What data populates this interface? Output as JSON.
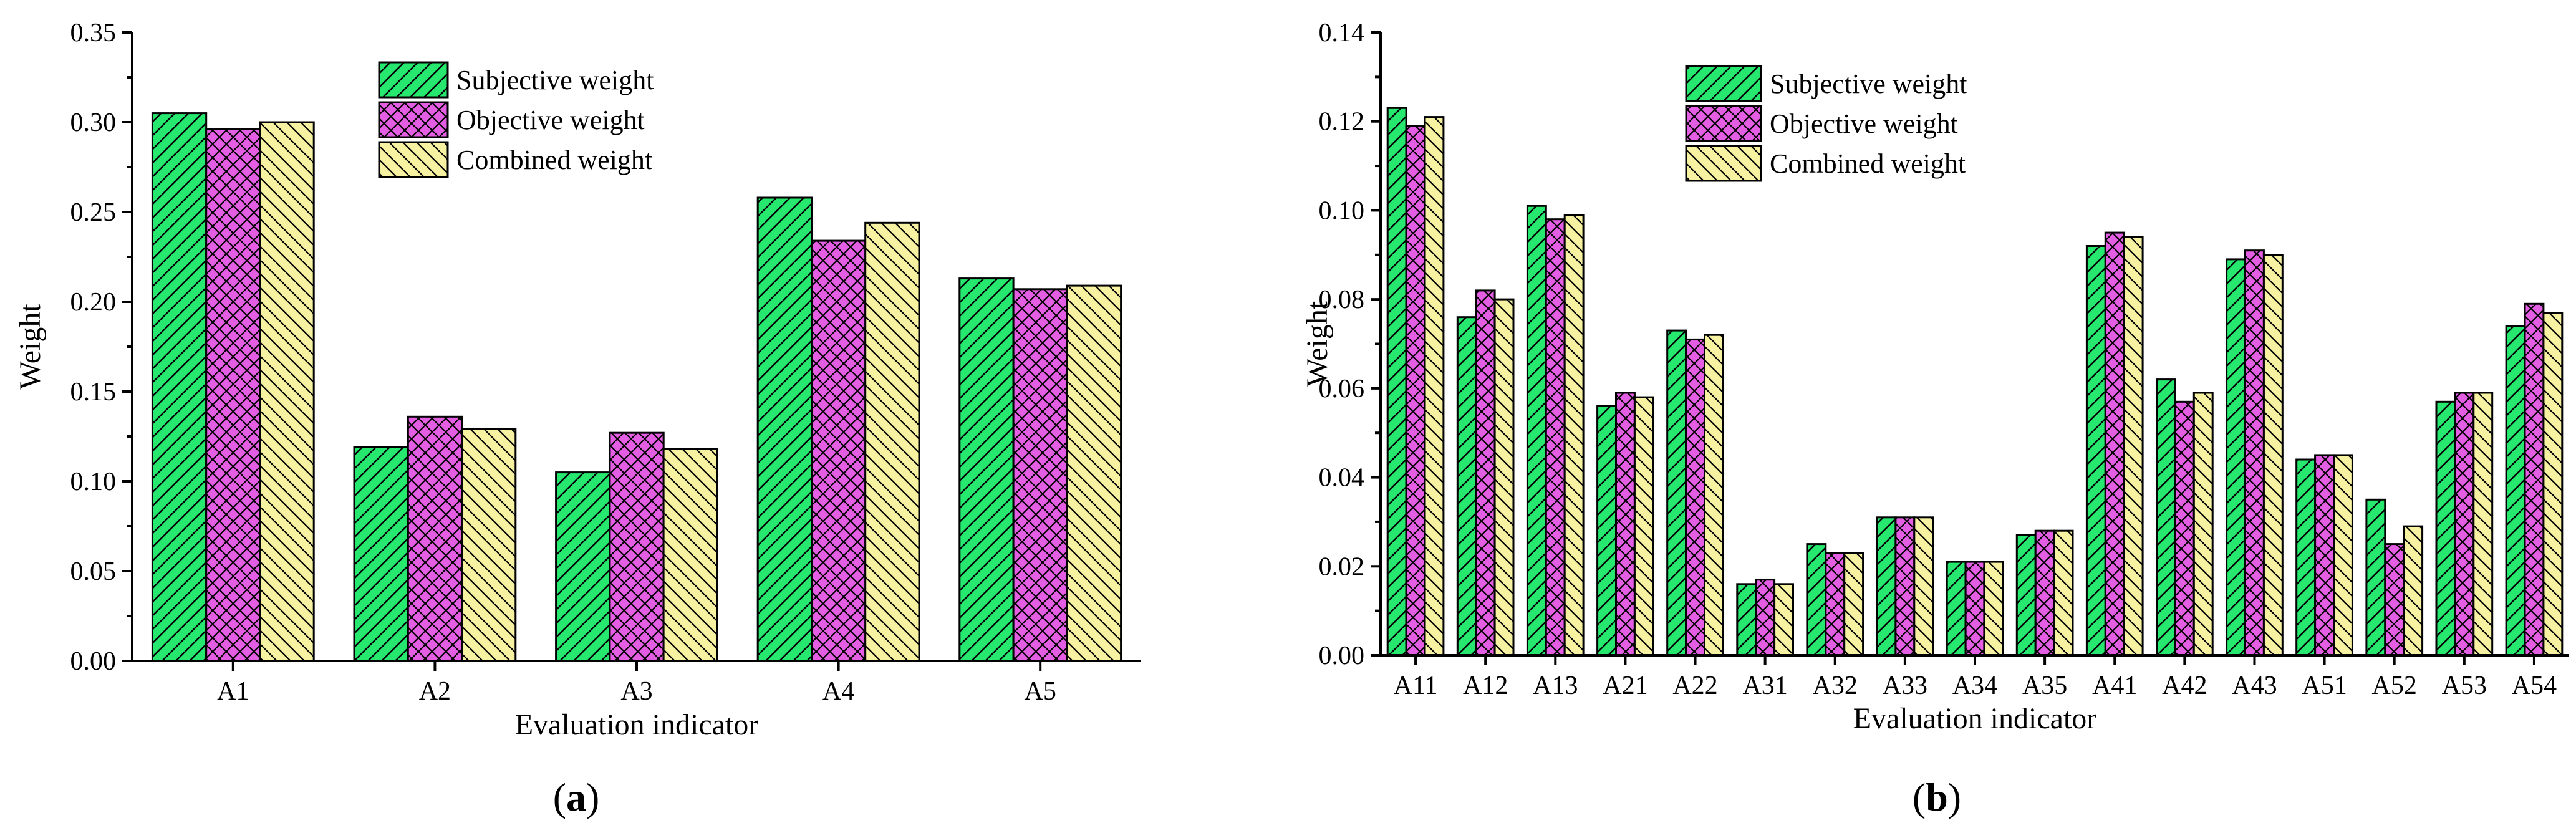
{
  "chart_data": [
    {
      "type": "bar",
      "panel_label": "(a)",
      "panel_letter": "a",
      "xlabel": "Evaluation indicator",
      "ylabel": "Weight",
      "ylim": [
        0,
        0.35
      ],
      "ytick_step": 0.05,
      "ytick_decimals": 2,
      "legend_position": "top-center",
      "categories": [
        "A1",
        "A2",
        "A3",
        "A4",
        "A5"
      ],
      "series": [
        {
          "name": "Subjective weight",
          "values": [
            0.305,
            0.119,
            0.105,
            0.258,
            0.213
          ]
        },
        {
          "name": "Objective weight",
          "values": [
            0.296,
            0.136,
            0.127,
            0.234,
            0.207
          ]
        },
        {
          "name": "Combined weight",
          "values": [
            0.3,
            0.129,
            0.118,
            0.244,
            0.209
          ]
        }
      ]
    },
    {
      "type": "bar",
      "panel_label": "(b)",
      "panel_letter": "b",
      "xlabel": "Evaluation indicator",
      "ylabel": "Weight",
      "ylim": [
        0,
        0.14
      ],
      "ytick_step": 0.02,
      "ytick_decimals": 2,
      "legend_position": "top-left",
      "categories": [
        "A11",
        "A12",
        "A13",
        "A21",
        "A22",
        "A31",
        "A32",
        "A33",
        "A34",
        "A35",
        "A41",
        "A42",
        "A43",
        "A51",
        "A52",
        "A53",
        "A54"
      ],
      "series": [
        {
          "name": "Subjective weight",
          "values": [
            0.123,
            0.076,
            0.101,
            0.056,
            0.073,
            0.016,
            0.025,
            0.031,
            0.021,
            0.027,
            0.092,
            0.062,
            0.089,
            0.044,
            0.035,
            0.057,
            0.074
          ]
        },
        {
          "name": "Objective weight",
          "values": [
            0.119,
            0.082,
            0.098,
            0.059,
            0.071,
            0.017,
            0.023,
            0.031,
            0.021,
            0.028,
            0.095,
            0.057,
            0.091,
            0.045,
            0.025,
            0.059,
            0.079
          ]
        },
        {
          "name": "Combined weight",
          "values": [
            0.121,
            0.08,
            0.099,
            0.058,
            0.072,
            0.016,
            0.023,
            0.031,
            0.021,
            0.028,
            0.094,
            0.059,
            0.09,
            0.045,
            0.029,
            0.059,
            0.077
          ]
        }
      ]
    }
  ],
  "colors": {
    "subjective": "#27e86f",
    "objective": "#e45ee4",
    "combined": "#f7f2a2",
    "axis": "#000000"
  }
}
